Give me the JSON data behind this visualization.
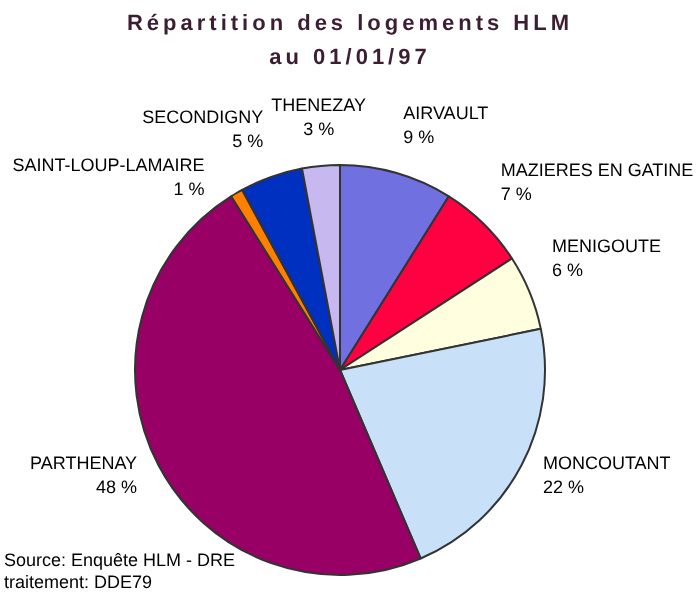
{
  "chart_data": {
    "type": "pie",
    "title": "Répartition des logements HLM\nau 01/01/97",
    "categories": [
      "AIRVAULT",
      "MAZIERES EN GATINE",
      "MENIGOUTE",
      "MONCOUTANT",
      "PARTHENAY",
      "SAINT-LOUP-LAMAIRE",
      "SECONDIGNY",
      "THENEZAY"
    ],
    "values": [
      9,
      7,
      6,
      22,
      48,
      1,
      5,
      3
    ],
    "value_labels": [
      "9 %",
      "7 %",
      "6 %",
      "22 %",
      "48 %",
      "1 %",
      "5 %",
      "3 %"
    ],
    "colors": [
      "#7070e0",
      "#ff0040",
      "#ffffe0",
      "#c8e0f8",
      "#990066",
      "#ff8000",
      "#0030c0",
      "#c8b8f0"
    ],
    "annotations": [
      "Source: Enquête HLM - DRE",
      "traitement: DDE79"
    ],
    "legend": false
  }
}
